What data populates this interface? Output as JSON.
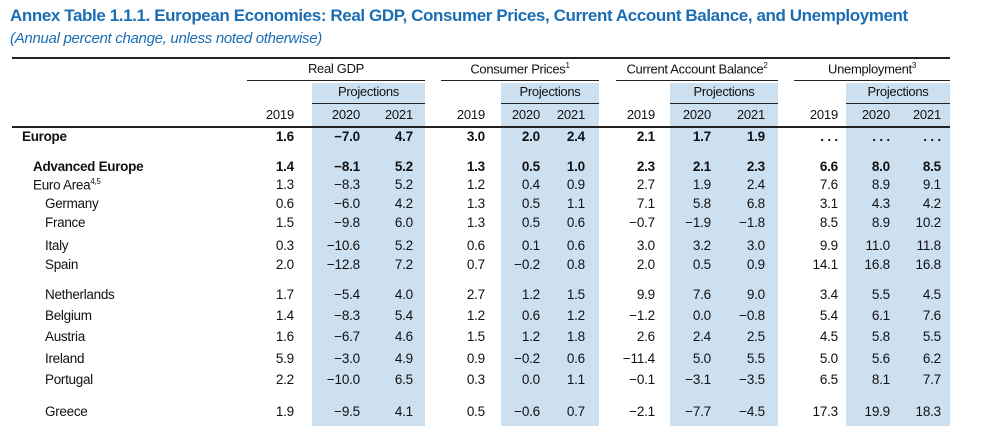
{
  "title": "Annex Table 1.1.1. European Economies: Real GDP, Consumer Prices, Current Account Balance, and Unemployment",
  "subtitle": "(Annual percent change, unless noted otherwise)",
  "groups": [
    {
      "label": "Real GDP",
      "sup": ""
    },
    {
      "label": "Consumer Prices",
      "sup": "1"
    },
    {
      "label": "Current Account Balance",
      "sup": "2"
    },
    {
      "label": "Unemployment",
      "sup": "3"
    }
  ],
  "projections_label": "Projections",
  "years": [
    "2019",
    "2020",
    "2021"
  ],
  "shade_color": "#cde0f0",
  "title_color": "#1c6eb4",
  "rows": [
    {
      "label": "Europe",
      "sup": "",
      "bold": true,
      "indent": 0,
      "values": [
        "1.6",
        "−7.0",
        "4.7",
        "3.0",
        "2.0",
        "2.4",
        "2.1",
        "1.7",
        "1.9",
        "...",
        "...",
        "..."
      ]
    },
    {
      "label": "Advanced Europe",
      "sup": "",
      "bold": true,
      "indent": 1,
      "values": [
        "1.4",
        "−8.1",
        "5.2",
        "1.3",
        "0.5",
        "1.0",
        "2.3",
        "2.1",
        "2.3",
        "6.6",
        "8.0",
        "8.5"
      ]
    },
    {
      "label": "Euro Area",
      "sup": "4,5",
      "bold": false,
      "indent": 1,
      "values": [
        "1.3",
        "−8.3",
        "5.2",
        "1.2",
        "0.4",
        "0.9",
        "2.7",
        "1.9",
        "2.4",
        "7.6",
        "8.9",
        "9.1"
      ]
    },
    {
      "label": "Germany",
      "sup": "",
      "bold": false,
      "indent": 2,
      "values": [
        "0.6",
        "−6.0",
        "4.2",
        "1.3",
        "0.5",
        "1.1",
        "7.1",
        "5.8",
        "6.8",
        "3.1",
        "4.3",
        "4.2"
      ]
    },
    {
      "label": "France",
      "sup": "",
      "bold": false,
      "indent": 2,
      "values": [
        "1.5",
        "−9.8",
        "6.0",
        "1.3",
        "0.5",
        "0.6",
        "−0.7",
        "−1.9",
        "−1.8",
        "8.5",
        "8.9",
        "10.2"
      ]
    },
    {
      "label": "Italy",
      "sup": "",
      "bold": false,
      "indent": 2,
      "values": [
        "0.3",
        "−10.6",
        "5.2",
        "0.6",
        "0.1",
        "0.6",
        "3.0",
        "3.2",
        "3.0",
        "9.9",
        "11.0",
        "11.8"
      ]
    },
    {
      "label": "Spain",
      "sup": "",
      "bold": false,
      "indent": 2,
      "values": [
        "2.0",
        "−12.8",
        "7.2",
        "0.7",
        "−0.2",
        "0.8",
        "2.0",
        "0.5",
        "0.9",
        "14.1",
        "16.8",
        "16.8"
      ]
    },
    {
      "label": "Netherlands",
      "sup": "",
      "bold": false,
      "indent": 2,
      "values": [
        "1.7",
        "−5.4",
        "4.0",
        "2.7",
        "1.2",
        "1.5",
        "9.9",
        "7.6",
        "9.0",
        "3.4",
        "5.5",
        "4.5"
      ]
    },
    {
      "label": "Belgium",
      "sup": "",
      "bold": false,
      "indent": 2,
      "values": [
        "1.4",
        "−8.3",
        "5.4",
        "1.2",
        "0.6",
        "1.2",
        "−1.2",
        "0.0",
        "−0.8",
        "5.4",
        "6.1",
        "7.6"
      ]
    },
    {
      "label": "Austria",
      "sup": "",
      "bold": false,
      "indent": 2,
      "values": [
        "1.6",
        "−6.7",
        "4.6",
        "1.5",
        "1.2",
        "1.8",
        "2.6",
        "2.4",
        "2.5",
        "4.5",
        "5.8",
        "5.5"
      ]
    },
    {
      "label": "Ireland",
      "sup": "",
      "bold": false,
      "indent": 2,
      "values": [
        "5.9",
        "−3.0",
        "4.9",
        "0.9",
        "−0.2",
        "0.6",
        "−11.4",
        "5.0",
        "5.5",
        "5.0",
        "5.6",
        "6.2"
      ]
    },
    {
      "label": "Portugal",
      "sup": "",
      "bold": false,
      "indent": 2,
      "values": [
        "2.2",
        "−10.0",
        "6.5",
        "0.3",
        "0.0",
        "1.1",
        "−0.1",
        "−3.1",
        "−3.5",
        "6.5",
        "8.1",
        "7.7"
      ]
    },
    {
      "label": "Greece",
      "sup": "",
      "bold": false,
      "indent": 2,
      "values": [
        "1.9",
        "−9.5",
        "4.1",
        "0.5",
        "−0.6",
        "0.7",
        "−2.1",
        "−7.7",
        "−4.5",
        "17.3",
        "19.9",
        "18.3"
      ]
    }
  ]
}
